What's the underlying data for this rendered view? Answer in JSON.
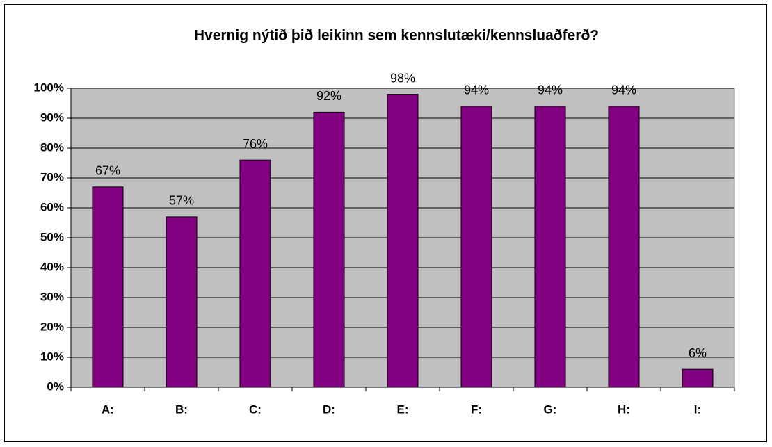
{
  "chart_data": {
    "type": "bar",
    "title": "Hvernig nýtið þið leikinn sem kennslutæki/kennsluaðferð?",
    "categories": [
      "A:",
      "B:",
      "C:",
      "D:",
      "E:",
      "F:",
      "G:",
      "H:",
      "I:"
    ],
    "values": [
      67,
      57,
      76,
      92,
      98,
      94,
      94,
      94,
      6
    ],
    "value_labels": [
      "67%",
      "57%",
      "76%",
      "92%",
      "98%",
      "94%",
      "94%",
      "94%",
      "6%"
    ],
    "color": "#800080",
    "ylim": [
      0,
      100
    ],
    "yticks": [
      {
        "value": 0,
        "label": "0%"
      },
      {
        "value": 10,
        "label": "10%"
      },
      {
        "value": 20,
        "label": "20%"
      },
      {
        "value": 30,
        "label": "30%"
      },
      {
        "value": 40,
        "label": "40%"
      },
      {
        "value": 50,
        "label": "50%"
      },
      {
        "value": 60,
        "label": "60%"
      },
      {
        "value": 70,
        "label": "70%"
      },
      {
        "value": 80,
        "label": "80%"
      },
      {
        "value": 90,
        "label": "90%"
      },
      {
        "value": 100,
        "label": "100%"
      }
    ],
    "grid": true
  }
}
